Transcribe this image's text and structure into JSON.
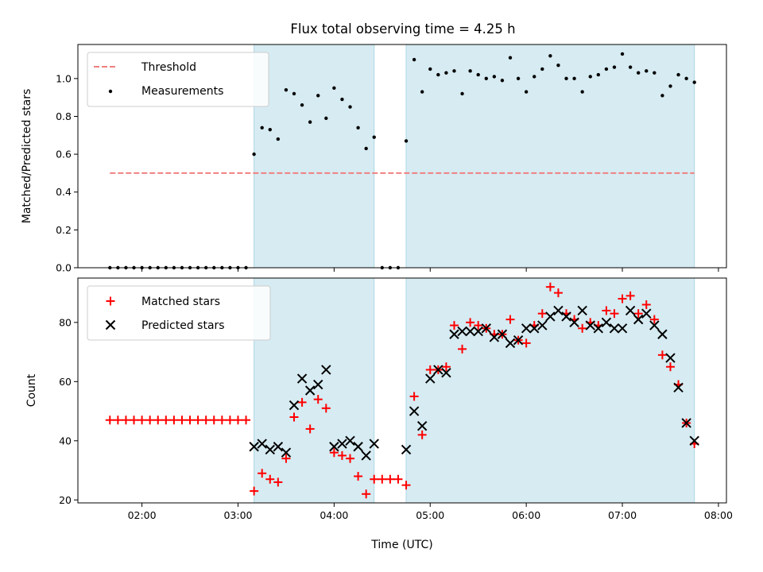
{
  "chart_data": [
    {
      "type": "scatter",
      "title": "Flux total observing time = 4.25 h",
      "xlabel": "",
      "ylabel": "Matched/Predicted stars",
      "ylim": [
        0,
        1.18
      ],
      "yticks": [
        "0.0",
        "0.2",
        "0.4",
        "0.6",
        "0.8",
        "1.0"
      ],
      "xlim": [
        "01:20",
        "08:05"
      ],
      "threshold": {
        "name": "Threshold",
        "value": 0.5,
        "from": "01:40",
        "to": "07:45",
        "color": "#f08080"
      },
      "shaded_ranges": [
        [
          "03:10",
          "04:25"
        ],
        [
          "04:45",
          "07:45"
        ]
      ],
      "shade_color": "#add8e6",
      "legend": {
        "position": "upper-left",
        "entries": [
          "Threshold",
          "Measurements"
        ]
      },
      "series": [
        {
          "name": "Measurements",
          "marker": "dot",
          "color": "#000000",
          "points": [
            [
              "01:40",
              0
            ],
            [
              "01:45",
              0
            ],
            [
              "01:50",
              0
            ],
            [
              "01:55",
              0
            ],
            [
              "02:00",
              0
            ],
            [
              "02:05",
              0
            ],
            [
              "02:10",
              0
            ],
            [
              "02:15",
              0
            ],
            [
              "02:20",
              0
            ],
            [
              "02:25",
              0
            ],
            [
              "02:30",
              0
            ],
            [
              "02:35",
              0
            ],
            [
              "02:40",
              0
            ],
            [
              "02:45",
              0
            ],
            [
              "02:50",
              0
            ],
            [
              "02:55",
              0
            ],
            [
              "03:00",
              0
            ],
            [
              "03:05",
              0
            ],
            [
              "03:10",
              0.6
            ],
            [
              "03:15",
              0.74
            ],
            [
              "03:20",
              0.73
            ],
            [
              "03:25",
              0.68
            ],
            [
              "03:30",
              0.94
            ],
            [
              "03:35",
              0.92
            ],
            [
              "03:40",
              0.86
            ],
            [
              "03:45",
              0.77
            ],
            [
              "03:50",
              0.91
            ],
            [
              "03:55",
              0.79
            ],
            [
              "04:00",
              0.95
            ],
            [
              "04:05",
              0.89
            ],
            [
              "04:10",
              0.85
            ],
            [
              "04:15",
              0.74
            ],
            [
              "04:20",
              0.63
            ],
            [
              "04:25",
              0.69
            ],
            [
              "04:30",
              0
            ],
            [
              "04:35",
              0
            ],
            [
              "04:40",
              0
            ],
            [
              "04:45",
              0.67
            ],
            [
              "04:50",
              1.1
            ],
            [
              "04:55",
              0.93
            ],
            [
              "05:00",
              1.05
            ],
            [
              "05:05",
              1.02
            ],
            [
              "05:10",
              1.03
            ],
            [
              "05:15",
              1.04
            ],
            [
              "05:20",
              0.92
            ],
            [
              "05:25",
              1.04
            ],
            [
              "05:30",
              1.02
            ],
            [
              "05:35",
              1.0
            ],
            [
              "05:40",
              1.01
            ],
            [
              "05:45",
              0.99
            ],
            [
              "05:50",
              1.11
            ],
            [
              "05:55",
              1.0
            ],
            [
              "06:00",
              0.93
            ],
            [
              "06:05",
              1.01
            ],
            [
              "06:10",
              1.05
            ],
            [
              "06:15",
              1.12
            ],
            [
              "06:20",
              1.07
            ],
            [
              "06:25",
              1.0
            ],
            [
              "06:30",
              1.0
            ],
            [
              "06:35",
              0.93
            ],
            [
              "06:40",
              1.01
            ],
            [
              "06:45",
              1.02
            ],
            [
              "06:50",
              1.05
            ],
            [
              "06:55",
              1.06
            ],
            [
              "07:00",
              1.13
            ],
            [
              "07:05",
              1.06
            ],
            [
              "07:10",
              1.03
            ],
            [
              "07:15",
              1.04
            ],
            [
              "07:20",
              1.03
            ],
            [
              "07:25",
              0.91
            ],
            [
              "07:30",
              0.96
            ],
            [
              "07:35",
              1.02
            ],
            [
              "07:40",
              1.0
            ],
            [
              "07:45",
              0.98
            ]
          ]
        }
      ]
    },
    {
      "type": "scatter",
      "title": "",
      "xlabel": "Time (UTC)",
      "ylabel": "Count",
      "ylim": [
        19,
        95
      ],
      "yticks": [
        "20",
        "40",
        "60",
        "80"
      ],
      "xlim": [
        "01:20",
        "08:05"
      ],
      "xticks": [
        "02:00",
        "03:00",
        "04:00",
        "05:00",
        "06:00",
        "07:00",
        "08:00"
      ],
      "shaded_ranges": [
        [
          "03:10",
          "04:25"
        ],
        [
          "04:45",
          "07:45"
        ]
      ],
      "shade_color": "#add8e6",
      "legend": {
        "position": "upper-left",
        "entries": [
          "Matched stars",
          "Predicted stars"
        ]
      },
      "series": [
        {
          "name": "Matched stars",
          "marker": "plus",
          "color": "#ff0000",
          "points": [
            [
              "01:40",
              47
            ],
            [
              "01:45",
              47
            ],
            [
              "01:50",
              47
            ],
            [
              "01:55",
              47
            ],
            [
              "02:00",
              47
            ],
            [
              "02:05",
              47
            ],
            [
              "02:10",
              47
            ],
            [
              "02:15",
              47
            ],
            [
              "02:20",
              47
            ],
            [
              "02:25",
              47
            ],
            [
              "02:30",
              47
            ],
            [
              "02:35",
              47
            ],
            [
              "02:40",
              47
            ],
            [
              "02:45",
              47
            ],
            [
              "02:50",
              47
            ],
            [
              "02:55",
              47
            ],
            [
              "03:00",
              47
            ],
            [
              "03:05",
              47
            ],
            [
              "03:10",
              23
            ],
            [
              "03:15",
              29
            ],
            [
              "03:20",
              27
            ],
            [
              "03:25",
              26
            ],
            [
              "03:30",
              34
            ],
            [
              "03:35",
              48
            ],
            [
              "03:40",
              53
            ],
            [
              "03:45",
              44
            ],
            [
              "03:50",
              54
            ],
            [
              "03:55",
              51
            ],
            [
              "04:00",
              36
            ],
            [
              "04:05",
              35
            ],
            [
              "04:10",
              34
            ],
            [
              "04:15",
              28
            ],
            [
              "04:20",
              22
            ],
            [
              "04:25",
              27
            ],
            [
              "04:30",
              27
            ],
            [
              "04:35",
              27
            ],
            [
              "04:40",
              27
            ],
            [
              "04:45",
              25
            ],
            [
              "04:50",
              55
            ],
            [
              "04:55",
              42
            ],
            [
              "05:00",
              64
            ],
            [
              "05:05",
              64
            ],
            [
              "05:10",
              65
            ],
            [
              "05:15",
              79
            ],
            [
              "05:20",
              71
            ],
            [
              "05:25",
              80
            ],
            [
              "05:30",
              79
            ],
            [
              "05:35",
              78
            ],
            [
              "05:40",
              76
            ],
            [
              "05:45",
              76
            ],
            [
              "05:50",
              81
            ],
            [
              "05:55",
              74
            ],
            [
              "06:00",
              73
            ],
            [
              "06:05",
              79
            ],
            [
              "06:10",
              83
            ],
            [
              "06:15",
              92
            ],
            [
              "06:20",
              90
            ],
            [
              "06:25",
              83
            ],
            [
              "06:30",
              81
            ],
            [
              "06:35",
              78
            ],
            [
              "06:40",
              80
            ],
            [
              "06:45",
              79
            ],
            [
              "06:50",
              84
            ],
            [
              "06:55",
              83
            ],
            [
              "07:00",
              88
            ],
            [
              "07:05",
              89
            ],
            [
              "07:10",
              83
            ],
            [
              "07:15",
              86
            ],
            [
              "07:20",
              81
            ],
            [
              "07:25",
              69
            ],
            [
              "07:30",
              65
            ],
            [
              "07:35",
              59
            ],
            [
              "07:40",
              46
            ],
            [
              "07:45",
              39
            ]
          ]
        },
        {
          "name": "Predicted stars",
          "marker": "x",
          "color": "#000000",
          "points": [
            [
              "03:10",
              38
            ],
            [
              "03:15",
              39
            ],
            [
              "03:20",
              37
            ],
            [
              "03:25",
              38
            ],
            [
              "03:30",
              36
            ],
            [
              "03:35",
              52
            ],
            [
              "03:40",
              61
            ],
            [
              "03:45",
              57
            ],
            [
              "03:50",
              59
            ],
            [
              "03:55",
              64
            ],
            [
              "04:00",
              38
            ],
            [
              "04:05",
              39
            ],
            [
              "04:10",
              40
            ],
            [
              "04:15",
              38
            ],
            [
              "04:20",
              35
            ],
            [
              "04:25",
              39
            ],
            [
              "04:45",
              37
            ],
            [
              "04:50",
              50
            ],
            [
              "04:55",
              45
            ],
            [
              "05:00",
              61
            ],
            [
              "05:05",
              64
            ],
            [
              "05:10",
              63
            ],
            [
              "05:15",
              76
            ],
            [
              "05:20",
              77
            ],
            [
              "05:25",
              77
            ],
            [
              "05:30",
              77
            ],
            [
              "05:35",
              78
            ],
            [
              "05:40",
              75
            ],
            [
              "05:45",
              76
            ],
            [
              "05:50",
              73
            ],
            [
              "05:55",
              74
            ],
            [
              "06:00",
              78
            ],
            [
              "06:05",
              78
            ],
            [
              "06:10",
              79
            ],
            [
              "06:15",
              82
            ],
            [
              "06:20",
              84
            ],
            [
              "06:25",
              82
            ],
            [
              "06:30",
              80
            ],
            [
              "06:35",
              84
            ],
            [
              "06:40",
              79
            ],
            [
              "06:45",
              78
            ],
            [
              "06:50",
              80
            ],
            [
              "06:55",
              78
            ],
            [
              "07:00",
              78
            ],
            [
              "07:05",
              84
            ],
            [
              "07:10",
              81
            ],
            [
              "07:15",
              83
            ],
            [
              "07:20",
              79
            ],
            [
              "07:25",
              76
            ],
            [
              "07:30",
              68
            ],
            [
              "07:35",
              58
            ],
            [
              "07:40",
              46
            ],
            [
              "07:45",
              40
            ]
          ]
        }
      ]
    }
  ]
}
